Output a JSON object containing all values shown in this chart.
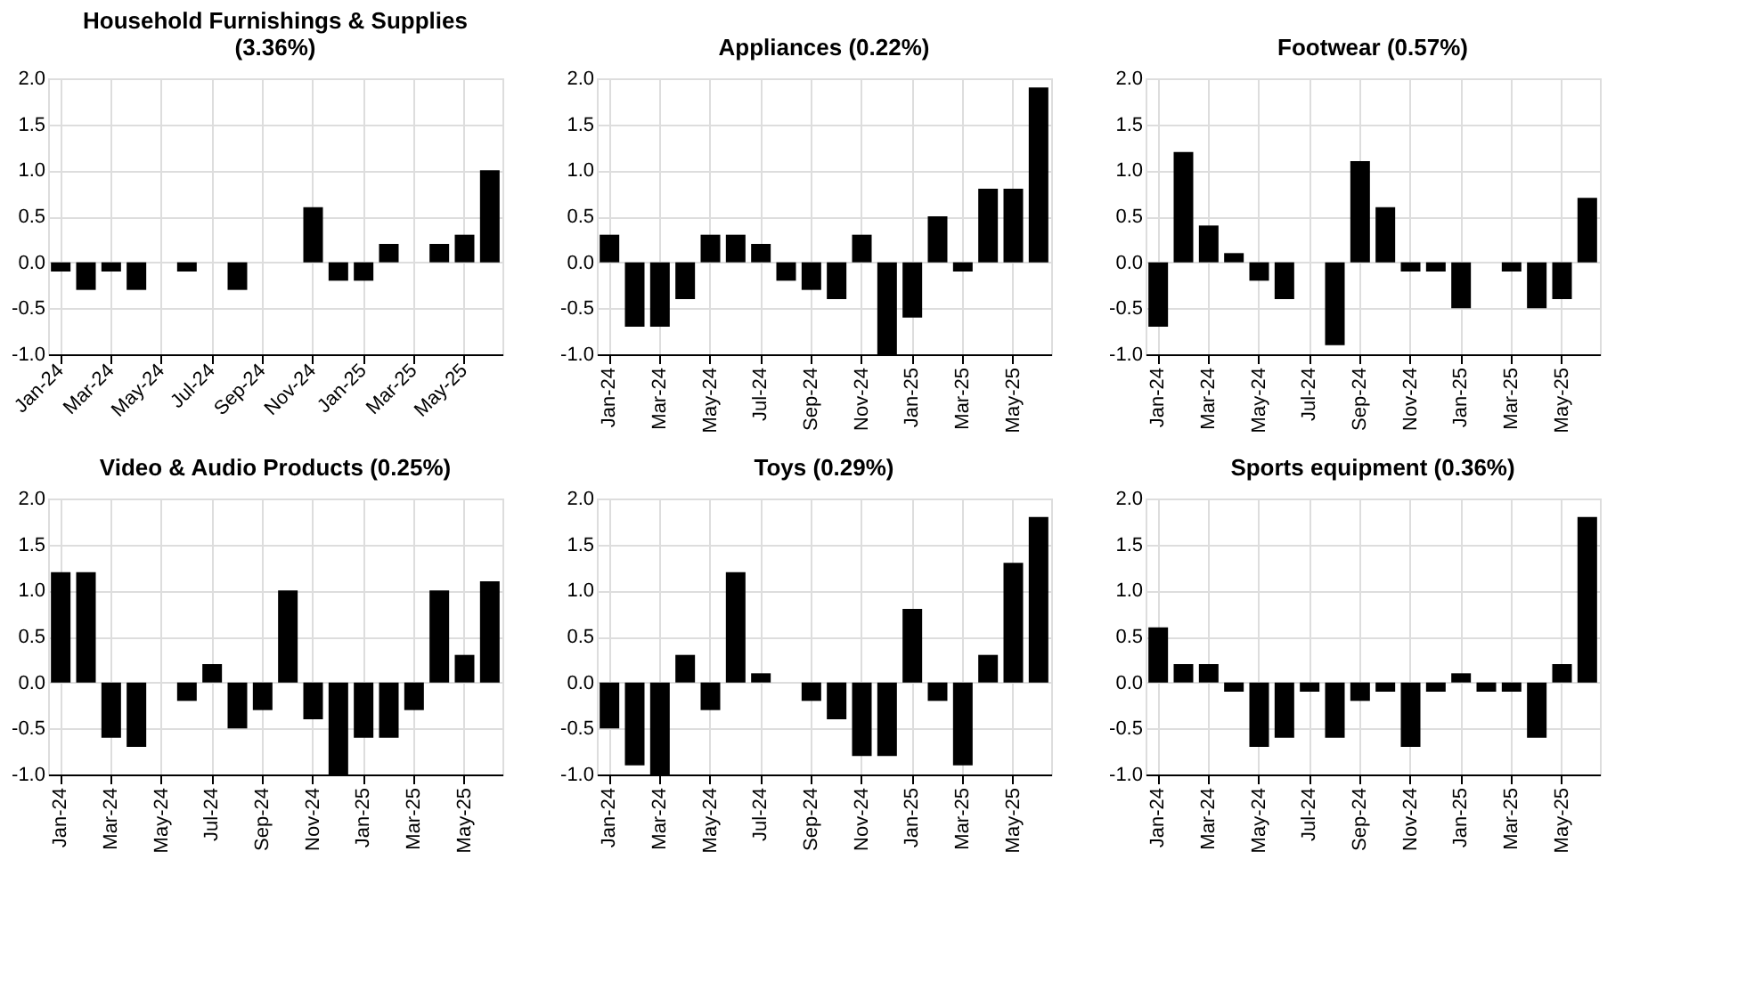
{
  "chart_data": [
    {
      "type": "bar",
      "title": "Household Furnishings & Supplies (3.36%)",
      "categories": [
        "Jan-24",
        null,
        "Mar-24",
        null,
        "May-24",
        null,
        "Jul-24",
        null,
        "Sep-24",
        null,
        "Nov-24",
        null,
        "Jan-25",
        null,
        "Mar-25",
        null,
        "May-25",
        null
      ],
      "values": [
        -0.1,
        -0.3,
        -0.1,
        -0.3,
        0,
        -0.1,
        0,
        -0.3,
        0,
        0,
        0.6,
        -0.2,
        -0.2,
        0.2,
        0,
        0.2,
        0.3,
        1.0
      ],
      "color": "#000000",
      "ylim": [
        -1.0,
        2.0
      ],
      "yticks": [
        {
          "value": -1.0,
          "label": "-1.0"
        },
        {
          "value": -0.5,
          "label": "-0.5"
        },
        {
          "value": 0,
          "label": "0.0"
        },
        {
          "value": 0.5,
          "label": "0.5"
        },
        {
          "value": 1.0,
          "label": "1.0"
        },
        {
          "value": 1.5,
          "label": "1.5"
        },
        {
          "value": 2.0,
          "label": "2.0"
        }
      ],
      "grid": true
    },
    {
      "type": "bar",
      "title": "Appliances (0.22%)",
      "categories": [
        "Jan-24",
        null,
        "Mar-24",
        null,
        "May-24",
        null,
        "Jul-24",
        null,
        "Sep-24",
        null,
        "Nov-24",
        null,
        "Jan-25",
        null,
        "Mar-25",
        null,
        "May-25",
        null
      ],
      "values": [
        0.3,
        -0.7,
        -0.7,
        -0.4,
        0.3,
        0.3,
        0.2,
        -0.2,
        -0.3,
        -0.4,
        0.3,
        -1.0,
        -0.6,
        0.5,
        -0.1,
        0.8,
        0.8,
        1.9
      ],
      "color": "#000000",
      "ylim": [
        -1.0,
        2.0
      ],
      "yticks": [
        {
          "value": -1.0,
          "label": "-1.0"
        },
        {
          "value": -0.5,
          "label": "-0.5"
        },
        {
          "value": 0,
          "label": "0.0"
        },
        {
          "value": 0.5,
          "label": "0.5"
        },
        {
          "value": 1.0,
          "label": "1.0"
        },
        {
          "value": 1.5,
          "label": "1.5"
        },
        {
          "value": 2.0,
          "label": "2.0"
        }
      ],
      "grid": true
    },
    {
      "type": "bar",
      "title": "Footwear (0.57%)",
      "categories": [
        "Jan-24",
        null,
        "Mar-24",
        null,
        "May-24",
        null,
        "Jul-24",
        null,
        "Sep-24",
        null,
        "Nov-24",
        null,
        "Jan-25",
        null,
        "Mar-25",
        null,
        "May-25",
        null
      ],
      "values": [
        -0.7,
        1.2,
        0.4,
        0.1,
        -0.2,
        -0.4,
        0,
        -0.9,
        1.1,
        0.6,
        -0.1,
        -0.1,
        -0.5,
        0,
        -0.1,
        -0.5,
        -0.4,
        0.7
      ],
      "color": "#000000",
      "ylim": [
        -1.0,
        2.0
      ],
      "yticks": [
        {
          "value": -1.0,
          "label": "-1.0"
        },
        {
          "value": -0.5,
          "label": "-0.5"
        },
        {
          "value": 0,
          "label": "0.0"
        },
        {
          "value": 0.5,
          "label": "0.5"
        },
        {
          "value": 1.0,
          "label": "1.0"
        },
        {
          "value": 1.5,
          "label": "1.5"
        },
        {
          "value": 2.0,
          "label": "2.0"
        }
      ],
      "grid": true
    },
    {
      "type": "bar",
      "title": "Video & Audio Products (0.25%)",
      "categories": [
        "Jan-24",
        null,
        "Mar-24",
        null,
        "May-24",
        null,
        "Jul-24",
        null,
        "Sep-24",
        null,
        "Nov-24",
        null,
        "Jan-25",
        null,
        "Mar-25",
        null,
        "May-25",
        null
      ],
      "values": [
        1.2,
        1.2,
        -0.6,
        -0.7,
        0,
        -0.2,
        0.2,
        -0.5,
        -0.3,
        1.0,
        -0.4,
        -1.0,
        -0.6,
        -0.6,
        -0.3,
        1.0,
        0.3,
        1.1
      ],
      "color": "#000000",
      "ylim": [
        -1.0,
        2.0
      ],
      "yticks": [
        {
          "value": -1.0,
          "label": "-1.0"
        },
        {
          "value": -0.5,
          "label": "-0.5"
        },
        {
          "value": 0,
          "label": "0.0"
        },
        {
          "value": 0.5,
          "label": "0.5"
        },
        {
          "value": 1.0,
          "label": "1.0"
        },
        {
          "value": 1.5,
          "label": "1.5"
        },
        {
          "value": 2.0,
          "label": "2.0"
        }
      ],
      "grid": true
    },
    {
      "type": "bar",
      "title": "Toys (0.29%)",
      "categories": [
        "Jan-24",
        null,
        "Mar-24",
        null,
        "May-24",
        null,
        "Jul-24",
        null,
        "Sep-24",
        null,
        "Nov-24",
        null,
        "Jan-25",
        null,
        "Mar-25",
        null,
        "May-25",
        null
      ],
      "values": [
        -0.5,
        -0.9,
        -1.0,
        0.3,
        -0.3,
        1.2,
        0.1,
        0,
        -0.2,
        -0.4,
        -0.8,
        -0.8,
        0.8,
        -0.2,
        -0.9,
        0.3,
        1.3,
        1.8
      ],
      "color": "#000000",
      "ylim": [
        -1.0,
        2.0
      ],
      "yticks": [
        {
          "value": -1.0,
          "label": "-1.0"
        },
        {
          "value": -0.5,
          "label": "-0.5"
        },
        {
          "value": 0,
          "label": "0.0"
        },
        {
          "value": 0.5,
          "label": "0.5"
        },
        {
          "value": 1.0,
          "label": "1.0"
        },
        {
          "value": 1.5,
          "label": "1.5"
        },
        {
          "value": 2.0,
          "label": "2.0"
        }
      ],
      "grid": true
    },
    {
      "type": "bar",
      "title": "Sports equipment (0.36%)",
      "categories": [
        "Jan-24",
        null,
        "Mar-24",
        null,
        "May-24",
        null,
        "Jul-24",
        null,
        "Sep-24",
        null,
        "Nov-24",
        null,
        "Jan-25",
        null,
        "Mar-25",
        null,
        "May-25",
        null
      ],
      "values": [
        0.6,
        0.2,
        0.2,
        -0.1,
        -0.7,
        -0.6,
        -0.1,
        -0.6,
        -0.2,
        -0.1,
        -0.7,
        -0.1,
        0.1,
        -0.1,
        -0.1,
        -0.6,
        0.2,
        1.8
      ],
      "color": "#000000",
      "ylim": [
        -1.0,
        2.0
      ],
      "yticks": [
        {
          "value": -1.0,
          "label": "-1.0"
        },
        {
          "value": -0.5,
          "label": "-0.5"
        },
        {
          "value": 0,
          "label": "0.0"
        },
        {
          "value": 0.5,
          "label": "0.5"
        },
        {
          "value": 1.0,
          "label": "1.0"
        },
        {
          "value": 1.5,
          "label": "1.5"
        },
        {
          "value": 2.0,
          "label": "2.0"
        }
      ],
      "grid": true
    }
  ]
}
